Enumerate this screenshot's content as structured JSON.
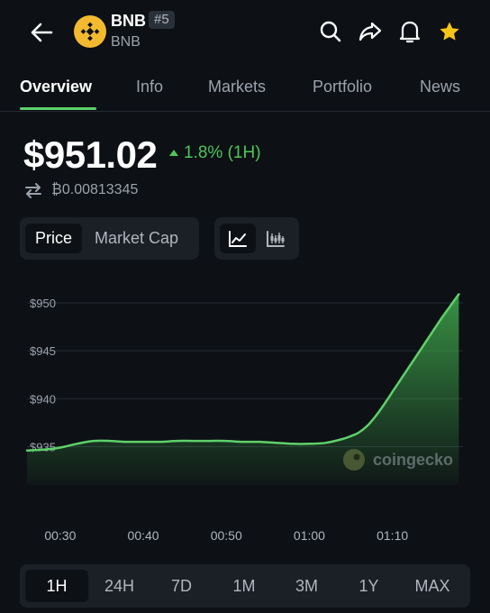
{
  "header": {
    "coin_name": "BNB",
    "rank": "#5",
    "symbol": "BNB",
    "logo_color": "#f3ba2f",
    "icons": [
      "back-arrow-icon",
      "search-icon",
      "share-icon",
      "bell-icon",
      "star-icon"
    ],
    "star_color": "#f5c518"
  },
  "tabs": [
    {
      "label": "Overview",
      "active": true
    },
    {
      "label": "Info",
      "active": false
    },
    {
      "label": "Markets",
      "active": false
    },
    {
      "label": "Portfolio",
      "active": false
    },
    {
      "label": "News",
      "active": false
    }
  ],
  "price": {
    "value": "$951.02",
    "change": "1.8% (1H)",
    "change_color": "#4cc759",
    "btc_value": "₿0.00813345"
  },
  "view_toggle": {
    "options": [
      "Price",
      "Market Cap"
    ],
    "selected": "Price"
  },
  "chart_type": {
    "options": [
      "line-chart-icon",
      "candlestick-icon"
    ],
    "selected": "line-chart-icon"
  },
  "watermark": "coingecko",
  "chart_data": {
    "type": "area",
    "x_tick_labels": [
      "00:30",
      "00:40",
      "00:50",
      "01:00",
      "01:10"
    ],
    "y_tick_labels": [
      "$950",
      "$945",
      "$940",
      "$935"
    ],
    "ylim": [
      931,
      951.5
    ],
    "series": [
      {
        "x_minutes": [
          26,
          28,
          30,
          32,
          34,
          36,
          38,
          40,
          42,
          44,
          46,
          48,
          50,
          52,
          54,
          56,
          58,
          60,
          62,
          64,
          65,
          66,
          67,
          68,
          69,
          70,
          71,
          72,
          73,
          74,
          75,
          76,
          77,
          78
        ],
        "values": [
          934.6,
          934.7,
          934.9,
          935.3,
          935.6,
          935.6,
          935.5,
          935.5,
          935.5,
          935.6,
          935.6,
          935.6,
          935.6,
          935.5,
          935.5,
          935.4,
          935.3,
          935.3,
          935.4,
          935.8,
          936.1,
          936.5,
          937.2,
          938.2,
          939.4,
          940.7,
          942.0,
          943.3,
          944.6,
          945.9,
          947.2,
          948.5,
          949.7,
          950.9
        ]
      }
    ],
    "x_range_minutes": [
      26,
      78.5
    ],
    "x_tick_minutes": [
      30,
      40,
      50,
      60,
      70
    ],
    "line_color": "#5ed16a",
    "grid": true
  },
  "time_ranges": {
    "options": [
      "1H",
      "24H",
      "7D",
      "1M",
      "3M",
      "1Y",
      "MAX"
    ],
    "selected": "1H"
  }
}
